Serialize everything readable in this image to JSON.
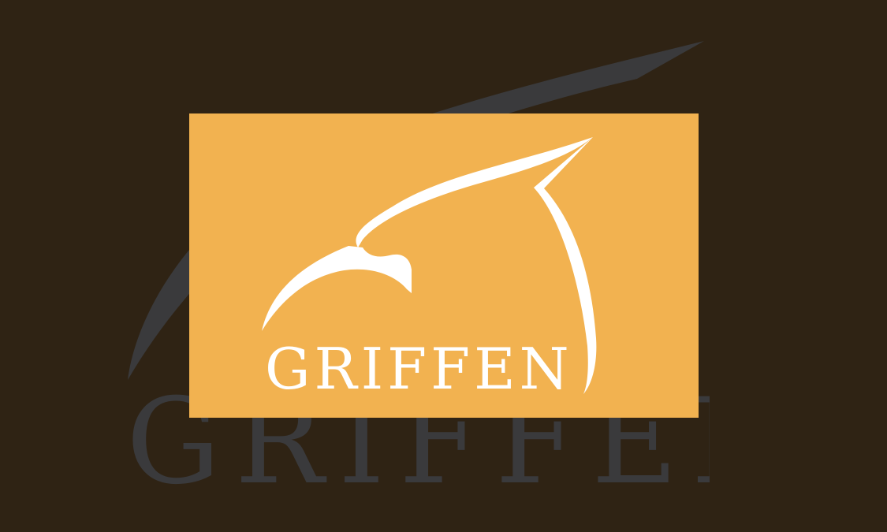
{
  "brand": {
    "name": "GRIFFEN",
    "background_wordmark": "GRIFFEN"
  },
  "colors": {
    "background": "#2f2314",
    "card": "#f2b250",
    "logo": "#ffffff",
    "ghost": "#3a3a3c"
  },
  "icons": {
    "mark": "griffin-head-icon"
  }
}
